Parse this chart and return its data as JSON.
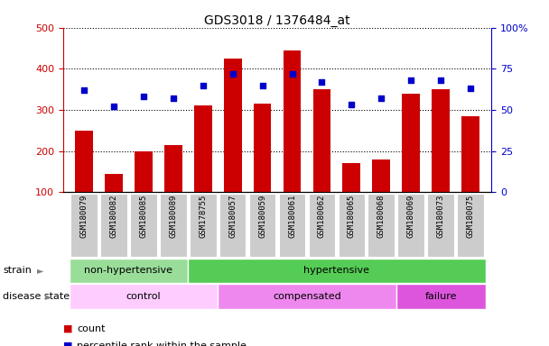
{
  "title": "GDS3018 / 1376484_at",
  "samples": [
    "GSM180079",
    "GSM180082",
    "GSM180085",
    "GSM180089",
    "GSM178755",
    "GSM180057",
    "GSM180059",
    "GSM180061",
    "GSM180062",
    "GSM180065",
    "GSM180068",
    "GSM180069",
    "GSM180073",
    "GSM180075"
  ],
  "counts": [
    250,
    145,
    200,
    215,
    310,
    425,
    315,
    445,
    350,
    170,
    180,
    340,
    350,
    285
  ],
  "percentiles": [
    62,
    52,
    58,
    57,
    65,
    72,
    65,
    72,
    67,
    53,
    57,
    68,
    68,
    63
  ],
  "bar_color": "#cc0000",
  "dot_color": "#0000cc",
  "ylim_left": [
    100,
    500
  ],
  "ylim_right": [
    0,
    100
  ],
  "yticks_left": [
    100,
    200,
    300,
    400,
    500
  ],
  "yticks_right": [
    0,
    25,
    50,
    75,
    100
  ],
  "strain_groups": [
    {
      "label": "non-hypertensive",
      "start": 0,
      "end": 4,
      "color": "#99dd99"
    },
    {
      "label": "hypertensive",
      "start": 4,
      "end": 14,
      "color": "#55cc55"
    }
  ],
  "disease_groups": [
    {
      "label": "control",
      "start": 0,
      "end": 5,
      "color": "#ffccff"
    },
    {
      "label": "compensated",
      "start": 5,
      "end": 11,
      "color": "#ee88ee"
    },
    {
      "label": "failure",
      "start": 11,
      "end": 14,
      "color": "#dd55dd"
    }
  ],
  "legend_items": [
    {
      "label": "count",
      "color": "#cc0000"
    },
    {
      "label": "percentile rank within the sample",
      "color": "#0000cc"
    }
  ],
  "background_color": "#ffffff",
  "tick_bg_color": "#cccccc",
  "n_samples": 14
}
